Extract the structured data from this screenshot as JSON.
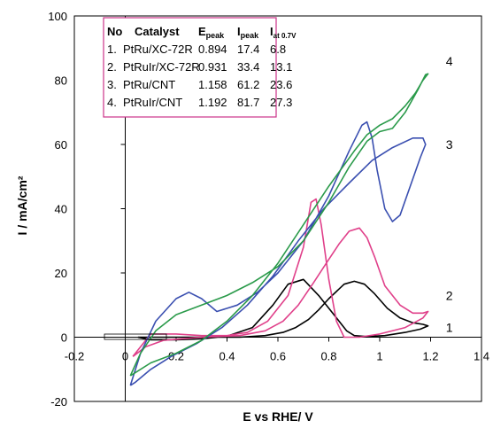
{
  "chart_data": {
    "type": "line",
    "xlabel": "E vs RHE/ V",
    "ylabel": "I / mA/cm²",
    "xlim": [
      -0.2,
      1.4
    ],
    "ylim": [
      -20,
      100
    ],
    "xticks": [
      "-0.2",
      "0",
      "0.2",
      "0.4",
      "0.6",
      "0.8",
      "1",
      "1.2",
      "1.4"
    ],
    "yticks": [
      "-20",
      "0",
      "20",
      "40",
      "60",
      "80",
      "100"
    ],
    "grid": false,
    "legend": "none",
    "table": {
      "headers": [
        "No",
        "Catalyst",
        "E",
        "peak",
        "I",
        "peak",
        "I",
        "at 0.7V"
      ],
      "rows": [
        [
          "1.",
          "PtRu/XC-72R",
          "0.894",
          "17.4",
          "6.8"
        ],
        [
          "2.",
          "PtRuIr/XC-72R",
          "0.931",
          "33.4",
          "13.1"
        ],
        [
          "3.",
          "PtRu/CNT",
          "1.158",
          "61.2",
          "23.6"
        ],
        [
          "4.",
          "PtRuIr/CNT",
          "1.192",
          "81.7",
          "27.3"
        ]
      ]
    },
    "series": [
      {
        "label": "1",
        "color": "#000000",
        "x": [
          0.05,
          0.15,
          0.3,
          0.45,
          0.55,
          0.62,
          0.67,
          0.72,
          0.76,
          0.8,
          0.86,
          0.9,
          0.94,
          0.98,
          1.03,
          1.08,
          1.13,
          1.17,
          1.19,
          1.16,
          1.1,
          1.02,
          0.95,
          0.9,
          0.87,
          0.82,
          0.76,
          0.7,
          0.64,
          0.58,
          0.5,
          0.4,
          0.3,
          0.2,
          0.1,
          0.05
        ],
        "y": [
          0,
          0,
          0,
          0,
          0.5,
          1.5,
          3,
          5.5,
          8.5,
          12,
          16.5,
          17.4,
          16.5,
          13.5,
          9,
          6,
          4.5,
          4,
          3.5,
          2.5,
          1.5,
          0.5,
          0.2,
          0.5,
          2,
          7,
          13,
          18,
          16.5,
          10,
          3,
          0.3,
          -0.5,
          -0.8,
          -0.8,
          0
        ]
      },
      {
        "label": "2",
        "color": "#e0408a",
        "x": [
          0.03,
          0.08,
          0.15,
          0.3,
          0.45,
          0.55,
          0.62,
          0.68,
          0.74,
          0.79,
          0.84,
          0.88,
          0.92,
          0.95,
          0.98,
          1.02,
          1.08,
          1.13,
          1.17,
          1.19,
          1.17,
          1.1,
          1.0,
          0.92,
          0.86,
          0.83,
          0.8,
          0.77,
          0.75,
          0.73,
          0.7,
          0.64,
          0.56,
          0.48,
          0.4,
          0.3,
          0.2,
          0.1,
          0.03
        ],
        "y": [
          -6,
          -3,
          -1,
          0,
          0.5,
          2,
          5,
          10,
          17,
          23,
          29,
          33,
          34,
          31,
          25,
          16,
          10,
          7.5,
          7.5,
          8,
          6,
          3,
          1,
          0,
          0,
          5,
          18,
          35,
          43,
          42,
          28,
          13,
          5,
          1.5,
          0.5,
          0.5,
          1,
          1,
          -6
        ]
      },
      {
        "label": "3",
        "color": "#3a4fb0",
        "x": [
          0.02,
          0.06,
          0.12,
          0.2,
          0.25,
          0.3,
          0.36,
          0.44,
          0.52,
          0.6,
          0.7,
          0.8,
          0.88,
          0.93,
          0.95,
          0.97,
          0.99,
          1.02,
          1.05,
          1.08,
          1.12,
          1.16,
          1.18,
          1.17,
          1.13,
          1.05,
          0.97,
          0.88,
          0.78,
          0.68,
          0.58,
          0.48,
          0.38,
          0.28,
          0.18,
          0.1,
          0.04,
          0.02
        ],
        "y": [
          -15,
          -5,
          5,
          12,
          14,
          12,
          8,
          10,
          14,
          20,
          30,
          44,
          58,
          66,
          67,
          62,
          52,
          40,
          36,
          38,
          47,
          56,
          60,
          62,
          62,
          59,
          55,
          48,
          40,
          30,
          19,
          10,
          3,
          -2,
          -6,
          -10,
          -14,
          -15
        ]
      },
      {
        "label": "4",
        "color": "#2a9a4a",
        "x": [
          0.02,
          0.06,
          0.12,
          0.2,
          0.3,
          0.4,
          0.5,
          0.6,
          0.7,
          0.8,
          0.88,
          0.95,
          1.0,
          1.05,
          1.1,
          1.15,
          1.18,
          1.19,
          1.17,
          1.14,
          1.1,
          1.05,
          1.0,
          0.95,
          0.9,
          0.8,
          0.7,
          0.6,
          0.5,
          0.4,
          0.3,
          0.2,
          0.1,
          0.04,
          0.02
        ],
        "y": [
          -12,
          -5,
          2,
          7,
          10,
          13,
          17,
          22,
          30,
          42,
          53,
          61,
          64,
          65,
          70,
          77,
          81.7,
          82,
          80,
          76,
          72,
          68,
          66,
          63,
          58,
          47,
          35,
          23,
          13,
          5,
          -1,
          -5,
          -8,
          -11,
          -12
        ]
      }
    ]
  }
}
